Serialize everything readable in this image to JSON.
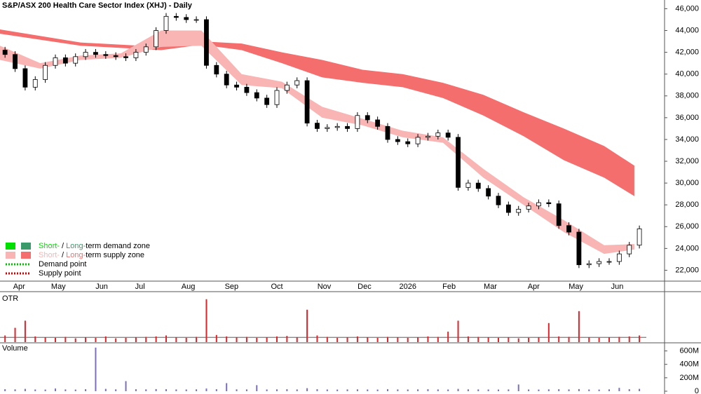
{
  "chart_data": {
    "type": "candlestick",
    "title": "S&P/ASX 200 Health Care Sector Index (XHJ) - Daily",
    "xlim": [
      0,
      66
    ],
    "xticks": [
      {
        "value": 1.9,
        "label": "Apr"
      },
      {
        "value": 5.8,
        "label": "May"
      },
      {
        "value": 10.1,
        "label": "Jun"
      },
      {
        "value": 13.9,
        "label": "Jul"
      },
      {
        "value": 18.7,
        "label": "Aug"
      },
      {
        "value": 23,
        "label": "Sep"
      },
      {
        "value": 27.5,
        "label": "Oct"
      },
      {
        "value": 32.2,
        "label": "Nov"
      },
      {
        "value": 36.2,
        "label": "Dec"
      },
      {
        "value": 40.5,
        "label": "2026"
      },
      {
        "value": 44.6,
        "label": "Feb"
      },
      {
        "value": 48.7,
        "label": "Mar"
      },
      {
        "value": 53,
        "label": "Apr"
      },
      {
        "value": 57.2,
        "label": "May"
      },
      {
        "value": 61.3,
        "label": "Jun"
      }
    ],
    "ylim": [
      21000,
      46800
    ],
    "yticks": [
      {
        "value": 22000,
        "label": "22,000"
      },
      {
        "value": 24000,
        "label": "24,000"
      },
      {
        "value": 26000,
        "label": "26,000"
      },
      {
        "value": 28000,
        "label": "28,000"
      },
      {
        "value": 30000,
        "label": "30,000"
      },
      {
        "value": 32000,
        "label": "32,000"
      },
      {
        "value": 34000,
        "label": "34,000"
      },
      {
        "value": 36000,
        "label": "36,000"
      },
      {
        "value": 38000,
        "label": "38,000"
      },
      {
        "value": 40000,
        "label": "40,000"
      },
      {
        "value": 42000,
        "label": "42,000"
      },
      {
        "value": 44000,
        "label": "44,000"
      },
      {
        "value": 46000,
        "label": "46,000"
      }
    ],
    "open": [
      42200,
      41800,
      40500,
      38800,
      39500,
      40800,
      41500,
      41000,
      41600,
      42000,
      41800,
      41700,
      41600,
      41500,
      42000,
      42500,
      44000,
      45300,
      45200,
      45000,
      45000,
      40800,
      40000,
      39000,
      38800,
      38300,
      37800,
      37200,
      38500,
      39000,
      39400,
      35500,
      35000,
      35100,
      35200,
      35000,
      36200,
      35800,
      35200,
      34000,
      33800,
      33600,
      34200,
      34300,
      34600,
      34200,
      29600,
      30000,
      29500,
      28800,
      28000,
      27300,
      27600,
      27900,
      28200,
      28100,
      26100,
      25500,
      22500,
      22600,
      22800,
      22800,
      23500,
      24300
    ],
    "high": [
      42500,
      42100,
      40800,
      39800,
      41100,
      41800,
      41800,
      41900,
      42300,
      42300,
      42100,
      42000,
      41900,
      42300,
      42800,
      44300,
      45600,
      45600,
      45500,
      45300,
      45300,
      41100,
      40300,
      39300,
      39100,
      38600,
      38100,
      38800,
      39300,
      39700,
      39700,
      35800,
      35400,
      35500,
      35500,
      36500,
      36500,
      36100,
      35500,
      34300,
      34100,
      34500,
      34600,
      34900,
      34900,
      34500,
      30300,
      30300,
      29800,
      29100,
      28300,
      27900,
      28200,
      28500,
      28500,
      28400,
      26400,
      25800,
      22900,
      23100,
      23100,
      23800,
      24600,
      26100
    ],
    "low": [
      41500,
      40200,
      38500,
      38500,
      39200,
      40500,
      40700,
      40700,
      41300,
      41500,
      41400,
      41300,
      41200,
      41200,
      41700,
      42200,
      43700,
      44900,
      44700,
      44700,
      40500,
      39700,
      38700,
      38500,
      38000,
      37500,
      36900,
      36900,
      38200,
      38700,
      35200,
      34700,
      34700,
      34800,
      34700,
      34700,
      35500,
      34900,
      33700,
      33500,
      33300,
      33300,
      33900,
      34000,
      33900,
      29300,
      29300,
      29200,
      28500,
      27700,
      27000,
      27000,
      27300,
      27600,
      27800,
      25800,
      25200,
      22200,
      22200,
      22300,
      22500,
      22500,
      23200,
      24000
    ],
    "close": [
      41800,
      40500,
      38800,
      39500,
      40800,
      41500,
      41000,
      41600,
      42000,
      41800,
      41700,
      41600,
      41500,
      42000,
      42500,
      44000,
      45300,
      45200,
      45000,
      45000,
      40800,
      40000,
      39000,
      38800,
      38300,
      37800,
      37200,
      38500,
      39000,
      39400,
      35500,
      35000,
      35100,
      35200,
      35000,
      36200,
      35800,
      35200,
      34000,
      33800,
      33600,
      34200,
      34300,
      34600,
      34200,
      29600,
      30000,
      29500,
      28800,
      28000,
      27300,
      27600,
      27900,
      28200,
      28100,
      26100,
      25500,
      22500,
      22600,
      22800,
      22800,
      23500,
      24300,
      25800
    ],
    "bands": [
      {
        "color": "#f46e6e",
        "x": [
          0,
          8,
          16,
          20,
          24,
          28,
          32,
          36,
          40,
          44,
          48,
          52,
          56,
          60,
          63
        ],
        "upper": [
          44100,
          42900,
          42500,
          43000,
          42800,
          42000,
          41300,
          40400,
          40000,
          39200,
          38100,
          36500,
          35000,
          33400,
          31600
        ],
        "lower": [
          43700,
          42600,
          42200,
          42700,
          42200,
          41000,
          39700,
          39200,
          38800,
          37800,
          36200,
          34300,
          32100,
          30500,
          28800
        ]
      },
      {
        "color": "#f9b4b4",
        "x": [
          0,
          4,
          8,
          12,
          16,
          20,
          24,
          28,
          32,
          36,
          40,
          44,
          48,
          52,
          56,
          60,
          63
        ],
        "upper": [
          42600,
          41000,
          41700,
          41900,
          44000,
          44000,
          40000,
          39300,
          37000,
          35900,
          34800,
          34200,
          31300,
          28700,
          26600,
          24300,
          24400
        ],
        "lower": [
          41300,
          40500,
          41300,
          41500,
          42500,
          42600,
          39000,
          38700,
          36000,
          35300,
          34200,
          33700,
          30500,
          28000,
          25500,
          23500,
          23900
        ]
      }
    ],
    "legend": [
      {
        "parts": [
          "Short-",
          " / ",
          "Long-",
          "term demand zone"
        ],
        "colors": [
          "#00e000",
          "#3a9a6a"
        ]
      },
      {
        "parts": [
          "Short-",
          " / ",
          "Long-",
          "term supply zone"
        ],
        "colors": [
          "#f9b4b4",
          "#f46e6e"
        ]
      },
      {
        "parts": [
          "Demand point"
        ],
        "colors": [
          "#00c000"
        ]
      },
      {
        "parts": [
          "Supply point"
        ],
        "colors": [
          "#d00000"
        ]
      }
    ],
    "otr": {
      "label": "OTR",
      "color": "#e0242a",
      "ylim": [
        0,
        100
      ],
      "values": [
        14,
        30,
        45,
        12,
        10,
        9,
        11,
        8,
        10,
        9,
        12,
        8,
        9,
        10,
        11,
        12,
        14,
        10,
        9,
        11,
        90,
        15,
        12,
        10,
        11,
        9,
        10,
        12,
        13,
        10,
        68,
        14,
        11,
        9,
        10,
        12,
        10,
        9,
        11,
        10,
        9,
        10,
        12,
        11,
        22,
        45,
        12,
        11,
        10,
        9,
        10,
        8,
        9,
        10,
        40,
        12,
        11,
        65,
        10,
        9,
        10,
        11,
        12,
        14
      ]
    },
    "volume": {
      "label": "Volume",
      "color": "#7b6fc0",
      "ylim": [
        0,
        700000000
      ],
      "yticks": [
        0,
        {
          "value": 200000000,
          "label": "200M"
        },
        {
          "value": 400000000,
          "label": "400M"
        },
        {
          "value": 600000000,
          "label": "600M"
        }
      ],
      "values": [
        30000000,
        28000000,
        35000000,
        26000000,
        25000000,
        40000000,
        27000000,
        25000000,
        30000000,
        650000000,
        35000000,
        28000000,
        150000000,
        30000000,
        28000000,
        32000000,
        30000000,
        27000000,
        26000000,
        28000000,
        40000000,
        30000000,
        120000000,
        28000000,
        27000000,
        90000000,
        26000000,
        28000000,
        30000000,
        27000000,
        45000000,
        30000000,
        26000000,
        25000000,
        27000000,
        28000000,
        26000000,
        25000000,
        30000000,
        27000000,
        26000000,
        28000000,
        30000000,
        27000000,
        26000000,
        35000000,
        28000000,
        27000000,
        26000000,
        25000000,
        27000000,
        100000000,
        26000000,
        25000000,
        28000000,
        30000000,
        27000000,
        32000000,
        26000000,
        25000000,
        28000000,
        50000000,
        30000000,
        35000000
      ]
    }
  }
}
